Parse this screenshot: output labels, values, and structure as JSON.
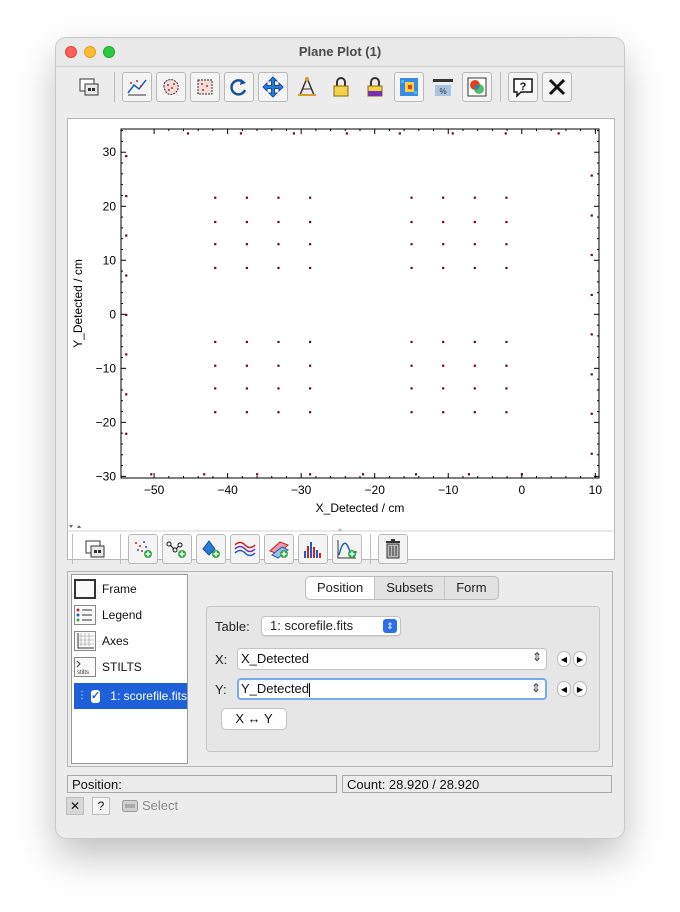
{
  "window": {
    "title": "Plane Plot (1)"
  },
  "toolbar": {
    "buttons": [
      "new-window-icon",
      "axis-lock-icon",
      "subset-blob-icon",
      "subset-box-icon",
      "replot-icon",
      "pan-zoom-icon",
      "grid-icon",
      "lock-aux-icon",
      "lock-aux-color-icon",
      "density-color-icon",
      "legend-icon",
      "export-icon",
      "help-icon",
      "close-icon"
    ]
  },
  "chart_data": {
    "type": "scatter",
    "xlabel": "X_Detected / cm",
    "ylabel": "Y_Detected / cm",
    "xlim": [
      -54.5,
      10.5
    ],
    "ylim": [
      -30.3,
      34.3
    ],
    "xticks": [
      -50,
      -40,
      -30,
      -20,
      -10,
      0,
      10
    ],
    "yticks": [
      -30,
      -20,
      -10,
      0,
      10,
      20,
      30
    ],
    "xtick_labels": [
      "−50",
      "−40",
      "−30",
      "−20",
      "−10",
      "0",
      "10"
    ],
    "ytick_labels": [
      "−30",
      "−20",
      "−10",
      "0",
      "10",
      "20",
      "30"
    ],
    "grid": false,
    "point_color": "#6b0a0a",
    "points": [
      [
        -45.4,
        33.5
      ],
      [
        -38.2,
        33.5
      ],
      [
        -31.0,
        33.5
      ],
      [
        -23.8,
        33.5
      ],
      [
        -16.6,
        33.5
      ],
      [
        -9.4,
        33.5
      ],
      [
        -2.2,
        33.5
      ],
      [
        5.0,
        33.5
      ],
      [
        -53.8,
        29.3
      ],
      [
        -53.8,
        21.9
      ],
      [
        -53.8,
        14.6
      ],
      [
        -53.8,
        7.2
      ],
      [
        -53.8,
        -0.1
      ],
      [
        -53.8,
        -7.4
      ],
      [
        -53.8,
        -14.8
      ],
      [
        -53.8,
        -22.1
      ],
      [
        -50.4,
        -29.6
      ],
      [
        -43.2,
        -29.6
      ],
      [
        -36.0,
        -29.6
      ],
      [
        -28.8,
        -29.6
      ],
      [
        -21.6,
        -29.6
      ],
      [
        -14.4,
        -29.6
      ],
      [
        -7.2,
        -29.6
      ],
      [
        0.0,
        -29.6
      ],
      [
        9.5,
        25.7
      ],
      [
        9.5,
        18.3
      ],
      [
        9.5,
        11.0
      ],
      [
        9.5,
        3.6
      ],
      [
        9.5,
        -3.7
      ],
      [
        9.5,
        -11.1
      ],
      [
        9.5,
        -18.4
      ],
      [
        9.5,
        -25.8
      ],
      [
        -41.7,
        21.6
      ],
      [
        -37.4,
        21.6
      ],
      [
        -33.1,
        21.6
      ],
      [
        -28.8,
        21.6
      ],
      [
        -41.7,
        17.1
      ],
      [
        -37.4,
        17.1
      ],
      [
        -33.1,
        17.1
      ],
      [
        -28.8,
        17.1
      ],
      [
        -41.7,
        13.0
      ],
      [
        -37.4,
        13.0
      ],
      [
        -33.1,
        13.0
      ],
      [
        -28.8,
        13.0
      ],
      [
        -41.7,
        8.6
      ],
      [
        -37.4,
        8.6
      ],
      [
        -33.1,
        8.6
      ],
      [
        -28.8,
        8.6
      ],
      [
        -15.0,
        21.6
      ],
      [
        -10.7,
        21.6
      ],
      [
        -6.4,
        21.6
      ],
      [
        -2.1,
        21.6
      ],
      [
        -15.0,
        17.1
      ],
      [
        -10.7,
        17.1
      ],
      [
        -6.4,
        17.1
      ],
      [
        -2.1,
        17.1
      ],
      [
        -15.0,
        13.0
      ],
      [
        -10.7,
        13.0
      ],
      [
        -6.4,
        13.0
      ],
      [
        -2.1,
        13.0
      ],
      [
        -15.0,
        8.6
      ],
      [
        -10.7,
        8.6
      ],
      [
        -6.4,
        8.6
      ],
      [
        -2.1,
        8.6
      ],
      [
        -41.7,
        -5.1
      ],
      [
        -37.4,
        -5.1
      ],
      [
        -33.1,
        -5.1
      ],
      [
        -28.8,
        -5.1
      ],
      [
        -41.7,
        -9.5
      ],
      [
        -37.4,
        -9.5
      ],
      [
        -33.1,
        -9.5
      ],
      [
        -28.8,
        -9.5
      ],
      [
        -41.7,
        -13.7
      ],
      [
        -37.4,
        -13.7
      ],
      [
        -33.1,
        -13.7
      ],
      [
        -28.8,
        -13.7
      ],
      [
        -41.7,
        -18.1
      ],
      [
        -37.4,
        -18.1
      ],
      [
        -33.1,
        -18.1
      ],
      [
        -28.8,
        -18.1
      ],
      [
        -15.0,
        -5.1
      ],
      [
        -10.7,
        -5.1
      ],
      [
        -6.4,
        -5.1
      ],
      [
        -2.1,
        -5.1
      ],
      [
        -15.0,
        -9.5
      ],
      [
        -10.7,
        -9.5
      ],
      [
        -6.4,
        -9.5
      ],
      [
        -2.1,
        -9.5
      ],
      [
        -15.0,
        -13.7
      ],
      [
        -10.7,
        -13.7
      ],
      [
        -6.4,
        -13.7
      ],
      [
        -2.1,
        -13.7
      ],
      [
        -15.0,
        -18.1
      ],
      [
        -10.7,
        -18.1
      ],
      [
        -6.4,
        -18.1
      ],
      [
        -2.1,
        -18.1
      ]
    ]
  },
  "layer_toolbar": {
    "buttons": [
      "new-window-icon",
      "add-scatter-layer-icon",
      "add-line-layer-icon",
      "add-mark-layer-icon",
      "add-contour-layer-icon",
      "add-area-layer-icon",
      "add-histogram-layer-icon",
      "add-function-layer-icon",
      "delete-layer-icon"
    ]
  },
  "layers": {
    "items": [
      "Frame",
      "Legend",
      "Axes",
      "STILTS"
    ],
    "selected": "1: scorefile.fits"
  },
  "tabs": [
    "Position",
    "Subsets",
    "Form"
  ],
  "form": {
    "table_label": "Table:",
    "table_value": "1: scorefile.fits",
    "x_label": "X:",
    "x_value": "X_Detected",
    "y_label": "Y:",
    "y_value": "Y_Detected",
    "swap_label": "X ↔ Y"
  },
  "status": {
    "position": "Position:",
    "count": "Count: 28.920 / 28.920"
  },
  "bottom": {
    "close": "✕",
    "help": "?",
    "select": "Select"
  }
}
